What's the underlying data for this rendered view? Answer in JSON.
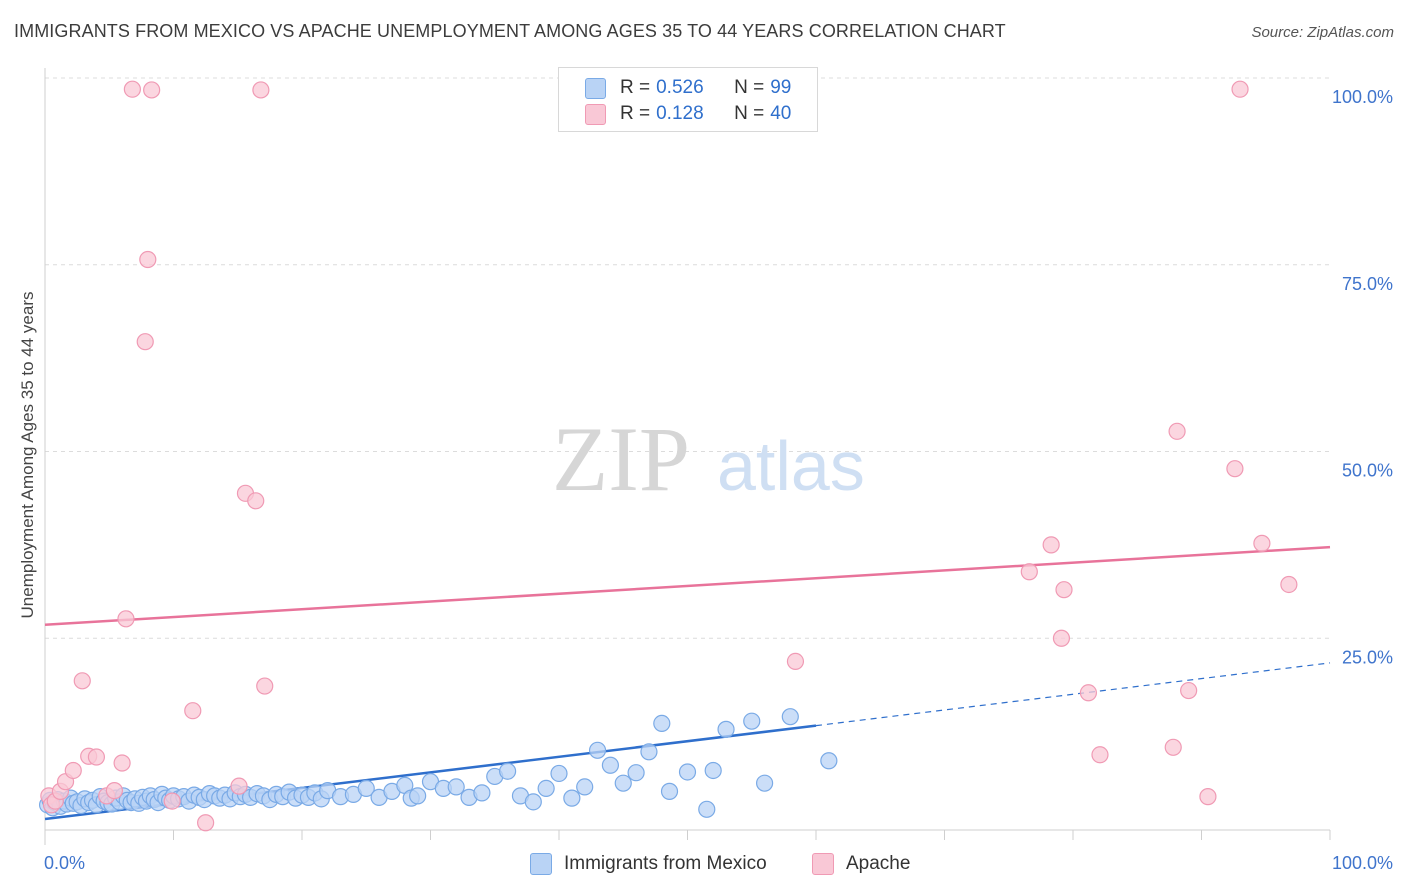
{
  "header": {
    "title": "IMMIGRANTS FROM MEXICO VS APACHE UNEMPLOYMENT AMONG AGES 35 TO 44 YEARS CORRELATION CHART",
    "source": "Source: ZipAtlas.com"
  },
  "watermark": {
    "zip": "ZIP",
    "atlas": "atlas"
  },
  "legend_top": {
    "rows": [
      {
        "r_label": "R =",
        "r_value": "0.526",
        "n_label": "N =",
        "n_value": "99"
      },
      {
        "r_label": "R =",
        "r_value": "0.128",
        "n_label": "N =",
        "n_value": "40"
      }
    ]
  },
  "bottom_legend": {
    "series1": "Immigrants from Mexico",
    "series2": "Apache"
  },
  "colors": {
    "blue_fill": "#b9d3f5",
    "blue_stroke": "#7aaae6",
    "blue_line": "#2f6fcc",
    "pink_fill": "#f9c8d6",
    "pink_stroke": "#f09ab4",
    "pink_line": "#e8739a",
    "tick_label": "#3f74cc",
    "grid": "#dcdcdc"
  },
  "chart_data": {
    "type": "scatter",
    "xlabel": "",
    "ylabel": "Unemployment Among Ages 35 to 44 years",
    "xlim": [
      0,
      100
    ],
    "ylim": [
      0,
      100
    ],
    "x_tick_labels": [
      "0.0%",
      "100.0%"
    ],
    "y_tick_labels": [
      "25.0%",
      "50.0%",
      "75.0%",
      "100.0%"
    ],
    "y_ticks": [
      25,
      50,
      75,
      100
    ],
    "series": [
      {
        "name": "Immigrants from Mexico",
        "trend": {
          "x": [
            0,
            60
          ],
          "y": [
            0.8,
            13.3
          ],
          "dashed_to": [
            100,
            21.7
          ]
        },
        "points": [
          [
            0.2,
            2.7
          ],
          [
            0.4,
            3.3
          ],
          [
            0.6,
            2.3
          ],
          [
            0.8,
            3.0
          ],
          [
            1.0,
            3.4
          ],
          [
            1.2,
            2.5
          ],
          [
            1.5,
            3.2
          ],
          [
            1.7,
            2.8
          ],
          [
            2.0,
            3.6
          ],
          [
            2.2,
            2.9
          ],
          [
            2.5,
            3.1
          ],
          [
            2.8,
            2.6
          ],
          [
            3.1,
            3.5
          ],
          [
            3.4,
            3.0
          ],
          [
            3.7,
            3.3
          ],
          [
            4.0,
            2.7
          ],
          [
            4.3,
            3.8
          ],
          [
            4.6,
            3.2
          ],
          [
            4.9,
            3.0
          ],
          [
            5.2,
            2.8
          ],
          [
            5.5,
            3.6
          ],
          [
            5.8,
            3.1
          ],
          [
            6.1,
            3.9
          ],
          [
            6.4,
            3.3
          ],
          [
            6.7,
            3.0
          ],
          [
            7.0,
            3.5
          ],
          [
            7.3,
            2.9
          ],
          [
            7.6,
            3.7
          ],
          [
            7.9,
            3.2
          ],
          [
            8.2,
            3.9
          ],
          [
            8.5,
            3.4
          ],
          [
            8.8,
            3.0
          ],
          [
            9.1,
            4.1
          ],
          [
            9.4,
            3.6
          ],
          [
            9.7,
            3.3
          ],
          [
            10.0,
            3.9
          ],
          [
            10.4,
            3.5
          ],
          [
            10.8,
            3.8
          ],
          [
            11.2,
            3.2
          ],
          [
            11.6,
            4.0
          ],
          [
            12.0,
            3.7
          ],
          [
            12.4,
            3.4
          ],
          [
            12.8,
            4.2
          ],
          [
            13.2,
            3.9
          ],
          [
            13.6,
            3.6
          ],
          [
            14.0,
            4.0
          ],
          [
            14.4,
            3.5
          ],
          [
            14.8,
            4.3
          ],
          [
            15.2,
            3.8
          ],
          [
            15.6,
            4.1
          ],
          [
            16.0,
            3.7
          ],
          [
            16.5,
            4.2
          ],
          [
            17.0,
            3.9
          ],
          [
            17.5,
            3.4
          ],
          [
            18.0,
            4.1
          ],
          [
            18.5,
            3.8
          ],
          [
            19.0,
            4.4
          ],
          [
            19.5,
            3.6
          ],
          [
            20.0,
            4.0
          ],
          [
            20.5,
            3.7
          ],
          [
            21.0,
            4.3
          ],
          [
            21.5,
            3.5
          ],
          [
            22.0,
            4.6
          ],
          [
            23.0,
            3.8
          ],
          [
            24.0,
            4.1
          ],
          [
            25.0,
            4.9
          ],
          [
            26.0,
            3.7
          ],
          [
            27.0,
            4.5
          ],
          [
            28.0,
            5.3
          ],
          [
            28.5,
            3.6
          ],
          [
            29.0,
            3.9
          ],
          [
            30.0,
            5.8
          ],
          [
            31.0,
            4.9
          ],
          [
            32.0,
            5.1
          ],
          [
            33.0,
            3.7
          ],
          [
            34.0,
            4.3
          ],
          [
            35.0,
            6.5
          ],
          [
            36.0,
            7.2
          ],
          [
            37.0,
            3.9
          ],
          [
            38.0,
            3.1
          ],
          [
            39.0,
            4.9
          ],
          [
            40.0,
            6.9
          ],
          [
            41.0,
            3.6
          ],
          [
            42.0,
            5.1
          ],
          [
            43.0,
            10.0
          ],
          [
            44.0,
            8.0
          ],
          [
            45.0,
            5.6
          ],
          [
            46.0,
            7.0
          ],
          [
            47.0,
            9.8
          ],
          [
            48.0,
            13.6
          ],
          [
            48.6,
            4.5
          ],
          [
            50.0,
            7.1
          ],
          [
            51.5,
            2.1
          ],
          [
            52.0,
            7.3
          ],
          [
            53.0,
            12.8
          ],
          [
            55.0,
            13.9
          ],
          [
            56.0,
            5.6
          ],
          [
            58.0,
            14.5
          ],
          [
            61.0,
            8.6
          ]
        ]
      },
      {
        "name": "Apache",
        "trend": {
          "x": [
            0,
            100
          ],
          "y": [
            26.8,
            37.2
          ]
        },
        "points": [
          [
            0.3,
            3.9
          ],
          [
            0.5,
            2.7
          ],
          [
            0.8,
            3.2
          ],
          [
            1.2,
            4.5
          ],
          [
            1.6,
            5.8
          ],
          [
            2.2,
            7.3
          ],
          [
            2.9,
            19.3
          ],
          [
            3.4,
            9.2
          ],
          [
            4.0,
            9.1
          ],
          [
            4.8,
            3.9
          ],
          [
            5.4,
            4.6
          ],
          [
            6.0,
            8.3
          ],
          [
            6.3,
            27.6
          ],
          [
            6.8,
            98.5
          ],
          [
            7.8,
            64.7
          ],
          [
            8.0,
            75.7
          ],
          [
            8.3,
            98.4
          ],
          [
            9.9,
            3.2
          ],
          [
            11.5,
            15.3
          ],
          [
            12.5,
            0.3
          ],
          [
            15.1,
            5.2
          ],
          [
            15.6,
            44.4
          ],
          [
            16.4,
            43.4
          ],
          [
            16.8,
            98.4
          ],
          [
            17.1,
            18.6
          ],
          [
            58.4,
            21.9
          ],
          [
            76.6,
            33.9
          ],
          [
            78.3,
            37.5
          ],
          [
            79.1,
            25.0
          ],
          [
            79.3,
            31.5
          ],
          [
            81.2,
            17.7
          ],
          [
            82.1,
            9.4
          ],
          [
            87.8,
            10.4
          ],
          [
            88.1,
            52.7
          ],
          [
            89.0,
            18.0
          ],
          [
            90.5,
            3.8
          ],
          [
            92.6,
            47.7
          ],
          [
            93.0,
            98.5
          ],
          [
            94.7,
            37.7
          ],
          [
            96.8,
            32.2
          ]
        ]
      }
    ]
  }
}
